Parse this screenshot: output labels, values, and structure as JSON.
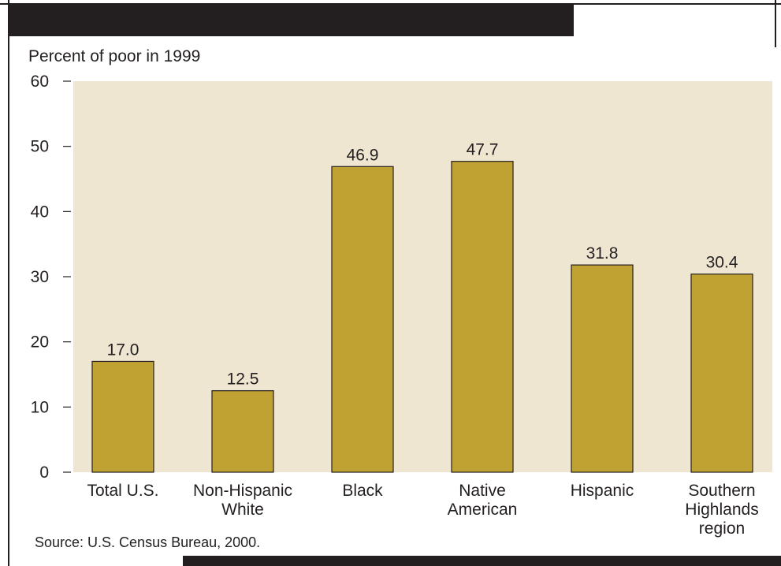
{
  "source": "Source: U.S. Census Bureau, 2000.",
  "chart_data": {
    "type": "bar",
    "ylabel": "Percent of poor in 1999",
    "categories": [
      [
        "Total U.S."
      ],
      [
        "Non-Hispanic",
        "White"
      ],
      [
        "Black"
      ],
      [
        "Native",
        "American"
      ],
      [
        "Hispanic"
      ],
      [
        "Southern",
        "Highlands",
        "region"
      ]
    ],
    "values": [
      17.0,
      12.5,
      46.9,
      47.7,
      31.8,
      30.4
    ],
    "value_labels": [
      "17.0",
      "12.5",
      "46.9",
      "47.7",
      "31.8",
      "30.4"
    ],
    "ylim": [
      0,
      60
    ],
    "yticks": [
      0,
      10,
      20,
      30,
      40,
      50,
      60
    ],
    "grid": false,
    "colors": {
      "bar": "#c0a232",
      "bar_outline": "#231f20",
      "plot_background": "#efe6d2",
      "text": "#231f20"
    }
  }
}
